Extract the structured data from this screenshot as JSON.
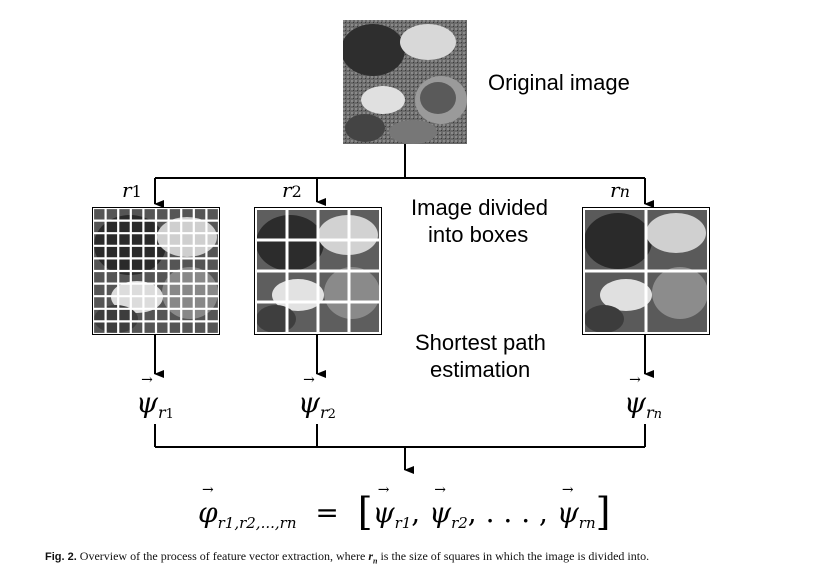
{
  "labels": {
    "original": "Original image",
    "divided_line1": "Image divided",
    "divided_line2": "into boxes",
    "shortest_line1": "Shortest path",
    "shortest_line2": "estimation"
  },
  "box_labels": {
    "r1": "r",
    "r1_sub": "1",
    "r2": "r",
    "r2_sub": "2",
    "rn": "r",
    "rn_sub": "n"
  },
  "psi": {
    "symbol": "ψ",
    "arrow": "→",
    "sub_r": "r",
    "sub_1": "1",
    "sub_2": "2",
    "sub_n": "n"
  },
  "formula": {
    "phi": "φ",
    "phi_sub": "r1,r2,...,rn",
    "equals": "=",
    "left_bracket": "[",
    "right_bracket": "]",
    "psi": "ψ",
    "sub1": "r1",
    "sub2": "r2",
    "subn": "rn",
    "sep": ",",
    "dots": ". . . ,"
  },
  "caption": {
    "fig": "Fig. 2.",
    "text_before": "Overview of the process of feature vector extraction, where",
    "rn": "r",
    "rn_sub": "n",
    "text_after": "is the size of squares in which the image is divided into."
  }
}
